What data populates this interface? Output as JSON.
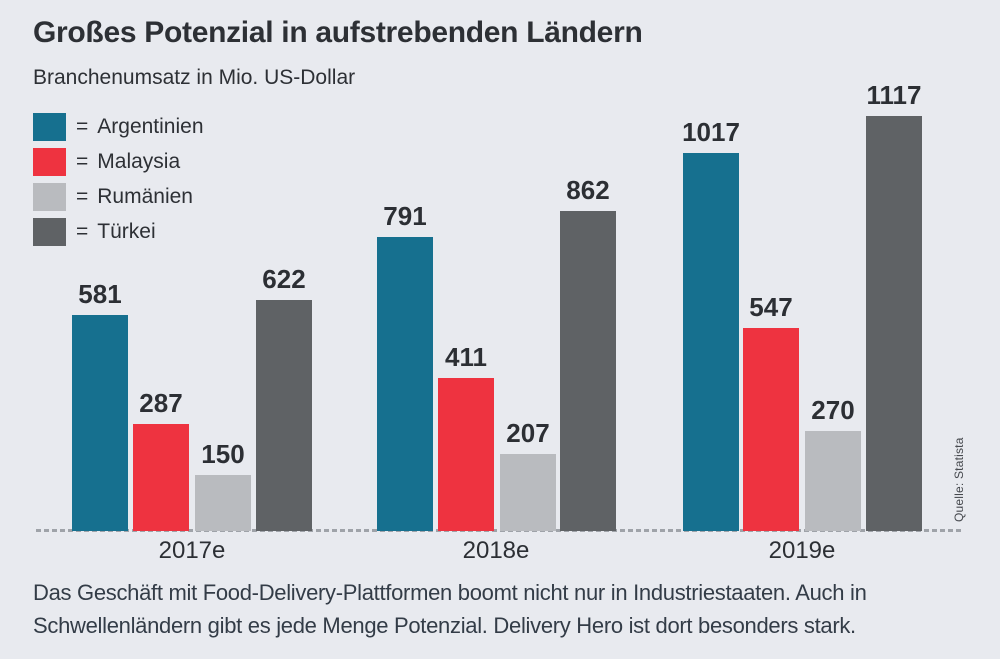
{
  "header": {
    "title": "Großes Potenzial in aufstrebenden Ländern",
    "subtitle": "Branchenumsatz in Mio. US-Dollar"
  },
  "legend": {
    "prefix": "="
  },
  "chart_data": {
    "type": "bar",
    "grouped": true,
    "title": "Großes Potenzial in aufstrebenden Ländern",
    "subtitle": "Branchenumsatz in Mio. US-Dollar",
    "unit": "Mio. US-Dollar",
    "categories": [
      "2017e",
      "2018e",
      "2019e"
    ],
    "series": [
      {
        "name": "Argentinien",
        "color": "#16708f",
        "values": [
          581,
          791,
          1017
        ]
      },
      {
        "name": "Malaysia",
        "color": "#ee3340",
        "values": [
          287,
          411,
          547
        ]
      },
      {
        "name": "Rumänien",
        "color": "#b9bbbf",
        "values": [
          150,
          207,
          270
        ]
      },
      {
        "name": "Türkei",
        "color": "#5f6265",
        "values": [
          622,
          862,
          1117
        ]
      }
    ],
    "ylim": [
      0,
      1117
    ],
    "value_labels": true,
    "grid": false,
    "legend_position": "top-left",
    "baseline_style": "dashed"
  },
  "caption": {
    "lines": [
      "Das Geschäft mit Food-Delivery-Plattformen boomt nicht nur in Industriestaaten. Auch in",
      "Schwellenländern gibt es jede Menge Potenzial. Delivery Hero ist dort besonders stark."
    ]
  },
  "source": "Quelle: Statista"
}
